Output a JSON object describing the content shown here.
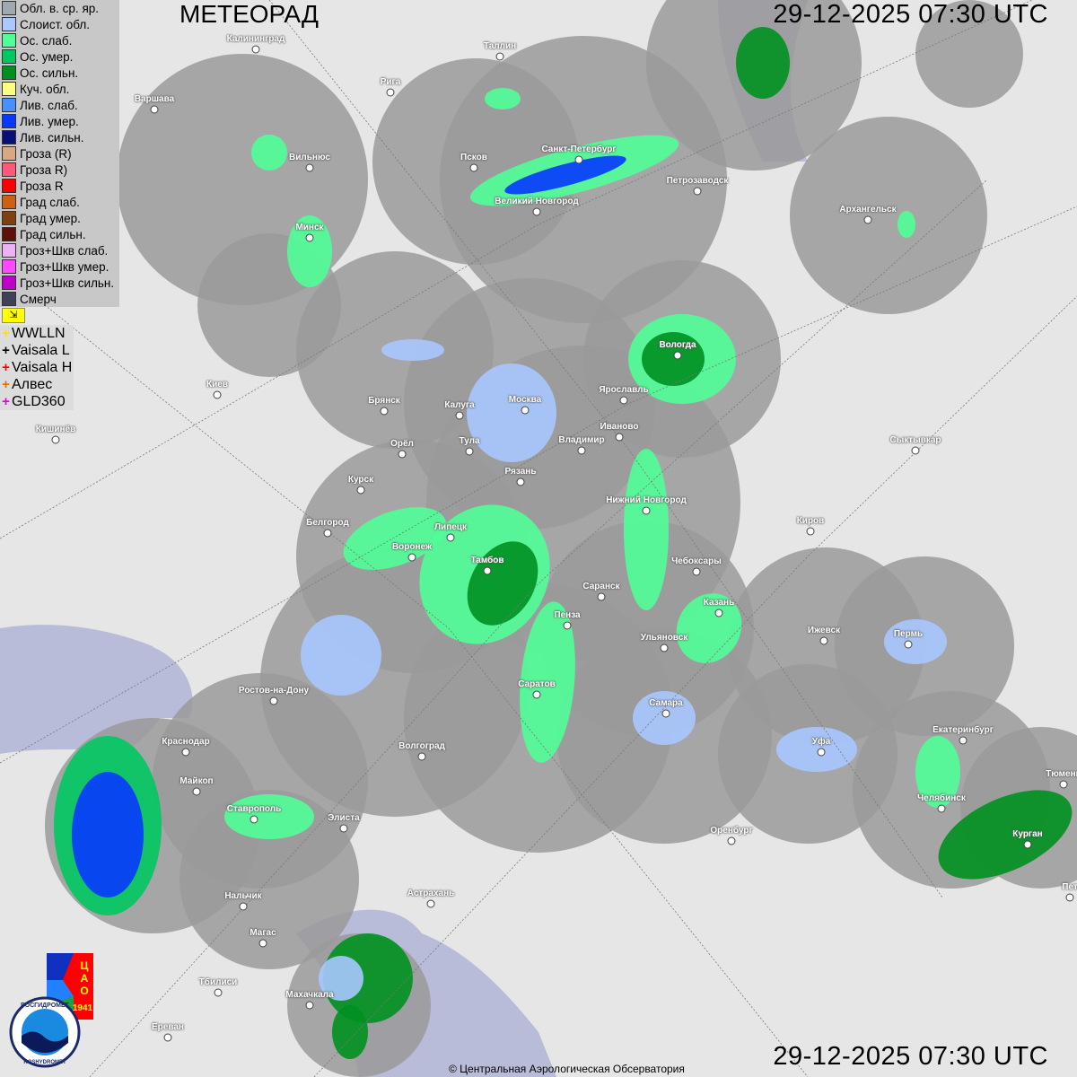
{
  "title": "МЕТЕОРАД",
  "timestamp_top": "29-12-2025  07:30 UTC",
  "timestamp_bottom": "29-12-2025  07:30 UTC",
  "legend": [
    {
      "label": "Обл. в. ср. яр.",
      "color": "#a0a8b0"
    },
    {
      "label": "Слоист. обл.",
      "color": "#a8c8ff"
    },
    {
      "label": "Ос. слаб.",
      "color": "#50ff98"
    },
    {
      "label": "Ос. умер.",
      "color": "#00c860"
    },
    {
      "label": "Ос. сильн.",
      "color": "#009020"
    },
    {
      "label": "Куч. обл.",
      "color": "#ffff80"
    },
    {
      "label": "Лив. слаб.",
      "color": "#4890ff"
    },
    {
      "label": "Лив. умер.",
      "color": "#0838ff"
    },
    {
      "label": "Лив. сильн.",
      "color": "#081078"
    },
    {
      "label": "Гроза (R)",
      "color": "#d8a880"
    },
    {
      "label": "Гроза R)",
      "color": "#ff5878"
    },
    {
      "label": "Гроза R",
      "color": "#ff0000"
    },
    {
      "label": "Град слаб.",
      "color": "#d06010"
    },
    {
      "label": "Град умер.",
      "color": "#804010"
    },
    {
      "label": "Град сильн.",
      "color": "#601008"
    },
    {
      "label": "Гроз+Шкв слаб.",
      "color": "#f0b0f8"
    },
    {
      "label": "Гроз+Шкв умер.",
      "color": "#ff48ff"
    },
    {
      "label": "Гроз+Шкв сильн.",
      "color": "#c000c8"
    },
    {
      "label": "Смерч",
      "color": "#404058"
    }
  ],
  "legend_flag_icon": "flag-icon",
  "lightning": [
    {
      "label": "WWLLN",
      "color": "#ffe000"
    },
    {
      "label": "Vaisala L",
      "color": "#000000"
    },
    {
      "label": "Vaisala H",
      "color": "#ff0000"
    },
    {
      "label": "Алвес",
      "color": "#e07000"
    },
    {
      "label": "GLD360",
      "color": "#e000e0"
    }
  ],
  "cities": [
    "Калининград",
    "Таллин",
    "Рига",
    "Варшава",
    "Вильнюс",
    "Псков",
    "Санкт-Петербург",
    "Петрозаводск",
    "Великий Новгород",
    "Архангельск",
    "Минск",
    "Вологда",
    "Ярославль",
    "Киев",
    "Брянск",
    "Калуга",
    "Москва",
    "Иваново",
    "Кишинёв",
    "Орёл",
    "Тула",
    "Владимир",
    "Рязань",
    "Сыктывкар",
    "Курск",
    "Нижний Новгород",
    "Киров",
    "Белгород",
    "Липецк",
    "Воронеж",
    "Тамбов",
    "Чебоксары",
    "Саранск",
    "Казань",
    "Пенза",
    "Ижевск",
    "Пермь",
    "Ульяновск",
    "Саратов",
    "Ростов-на-Дону",
    "Самара",
    "Екатеринбург",
    "Уфа",
    "Краснодар",
    "Волгоград",
    "Майкоп",
    "Челябинск",
    "Тюмень",
    "Ставрополь",
    "Элиста",
    "Оренбург",
    "Курган",
    "Нальчик",
    "Астрахань",
    "Магас",
    "Тбилиси",
    "Махачкала",
    "Ереван",
    "Пет"
  ],
  "logos": {
    "cao": "ЦАО 1941",
    "roshydromet": "РОСГИДРОМЕТ ROSHYDROMET"
  },
  "copyright": "© Центральная Аэрологическая Обсерватория",
  "colors": {
    "radar_zone": "#9a9a9a",
    "water": "#b8bcd8",
    "land": "#e6e6e6"
  }
}
